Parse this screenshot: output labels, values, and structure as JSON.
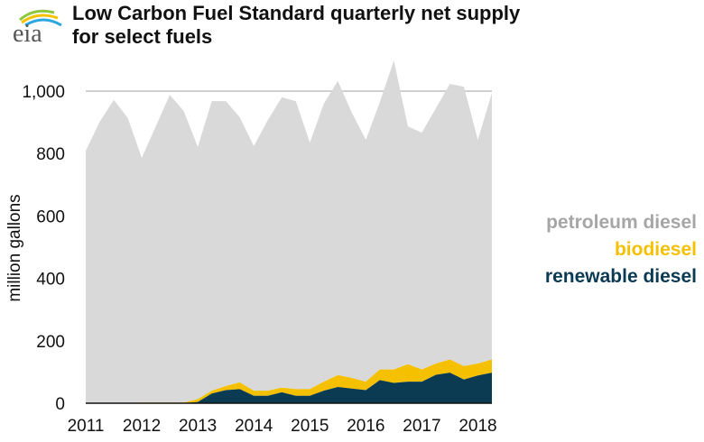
{
  "logo_text": "eia",
  "chart_data": {
    "type": "area",
    "stacked": true,
    "title": "Low Carbon Fuel Standard quarterly net supply for select fuels",
    "ylabel": "million gallons",
    "xlabel": "",
    "ylim": [
      0,
      1100
    ],
    "yticks": [
      0,
      200,
      400,
      600,
      800,
      1000
    ],
    "ytick_labels": [
      "0",
      "200",
      "400",
      "600",
      "800",
      "1,000"
    ],
    "xtick_labels": [
      "2011",
      "2012",
      "2013",
      "2014",
      "2015",
      "2016",
      "2017",
      "2018"
    ],
    "grid": "horizontal at 1,000 only visible",
    "legend_placement": "right",
    "x": [
      "2011Q1",
      "2011Q2",
      "2011Q3",
      "2011Q4",
      "2012Q1",
      "2012Q2",
      "2012Q3",
      "2012Q4",
      "2013Q1",
      "2013Q2",
      "2013Q3",
      "2013Q4",
      "2014Q1",
      "2014Q2",
      "2014Q3",
      "2014Q4",
      "2015Q1",
      "2015Q2",
      "2015Q3",
      "2015Q4",
      "2016Q1",
      "2016Q2",
      "2016Q3",
      "2016Q4",
      "2017Q1",
      "2017Q2",
      "2017Q3",
      "2017Q4",
      "2018Q1",
      "2018Q2"
    ],
    "series": [
      {
        "name": "renewable diesel",
        "color": "#0b3a53",
        "values": [
          0,
          0,
          0,
          0,
          0,
          0,
          0,
          0,
          4,
          31,
          42,
          45,
          24,
          24,
          35,
          24,
          24,
          40,
          52,
          47,
          42,
          74,
          65,
          69,
          69,
          91,
          98,
          76,
          89,
          98
        ]
      },
      {
        "name": "biodiesel",
        "color": "#f5c000",
        "values": [
          1,
          1,
          1,
          1,
          2,
          2,
          2,
          2,
          9,
          9,
          13,
          22,
          16,
          16,
          15,
          21,
          21,
          29,
          38,
          34,
          27,
          34,
          43,
          56,
          39,
          36,
          42,
          43,
          38,
          42
        ]
      },
      {
        "name": "petroleum diesel",
        "color": "#d9d9d9",
        "values": [
          808,
          901,
          971,
          913,
          784,
          885,
          986,
          934,
          808,
          928,
          913,
          849,
          784,
          867,
          930,
          923,
          790,
          891,
          942,
          850,
          775,
          857,
          990,
          762,
          759,
          818,
          883,
          895,
          717,
          854
        ]
      }
    ]
  },
  "legend_text_colors": {
    "petroleum diesel": "#a6a6a6",
    "biodiesel": "#f5c000",
    "renewable diesel": "#0b3a53"
  }
}
